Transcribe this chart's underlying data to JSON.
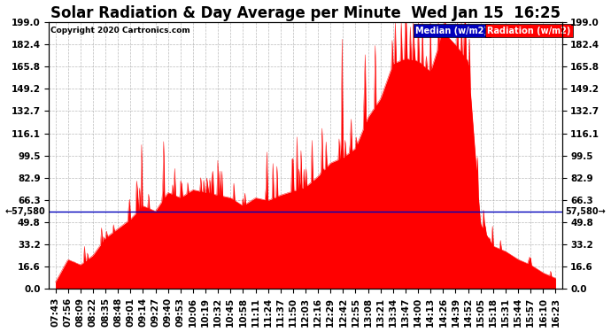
{
  "title": "Solar Radiation & Day Average per Minute  Wed Jan 15  16:25",
  "copyright": "Copyright 2020 Cartronics.com",
  "ylim": [
    0,
    199.0
  ],
  "yticks": [
    0.0,
    16.6,
    33.2,
    49.8,
    66.3,
    82.9,
    99.5,
    116.1,
    132.7,
    149.2,
    165.8,
    182.4,
    199.0
  ],
  "median_value": 57.58,
  "median_label": "57,580",
  "legend_median_label": "Median (w/m2)",
  "legend_radiation_label": "Radiation (w/m2)",
  "median_color": "#0000bb",
  "radiation_color": "#ff0000",
  "background_color": "#ffffff",
  "grid_color": "#aaaaaa",
  "title_fontsize": 12,
  "tick_fontsize": 7.5,
  "xtick_labels": [
    "07:43",
    "07:56",
    "08:09",
    "08:22",
    "08:35",
    "08:48",
    "09:01",
    "09:14",
    "09:27",
    "09:40",
    "09:53",
    "10:06",
    "10:19",
    "10:32",
    "10:45",
    "10:58",
    "11:11",
    "11:24",
    "11:37",
    "11:50",
    "12:03",
    "12:16",
    "12:29",
    "12:42",
    "12:55",
    "13:08",
    "13:21",
    "13:34",
    "13:47",
    "14:00",
    "14:13",
    "14:26",
    "14:39",
    "14:52",
    "15:05",
    "15:18",
    "15:31",
    "15:44",
    "15:57",
    "16:10",
    "16:23"
  ],
  "envelope": [
    5,
    22,
    18,
    25,
    38,
    45,
    52,
    62,
    58,
    72,
    68,
    74,
    72,
    70,
    68,
    62,
    68,
    66,
    70,
    73,
    76,
    84,
    94,
    98,
    105,
    128,
    142,
    168,
    172,
    170,
    162,
    192,
    182,
    170,
    48,
    32,
    28,
    22,
    18,
    12,
    8
  ]
}
